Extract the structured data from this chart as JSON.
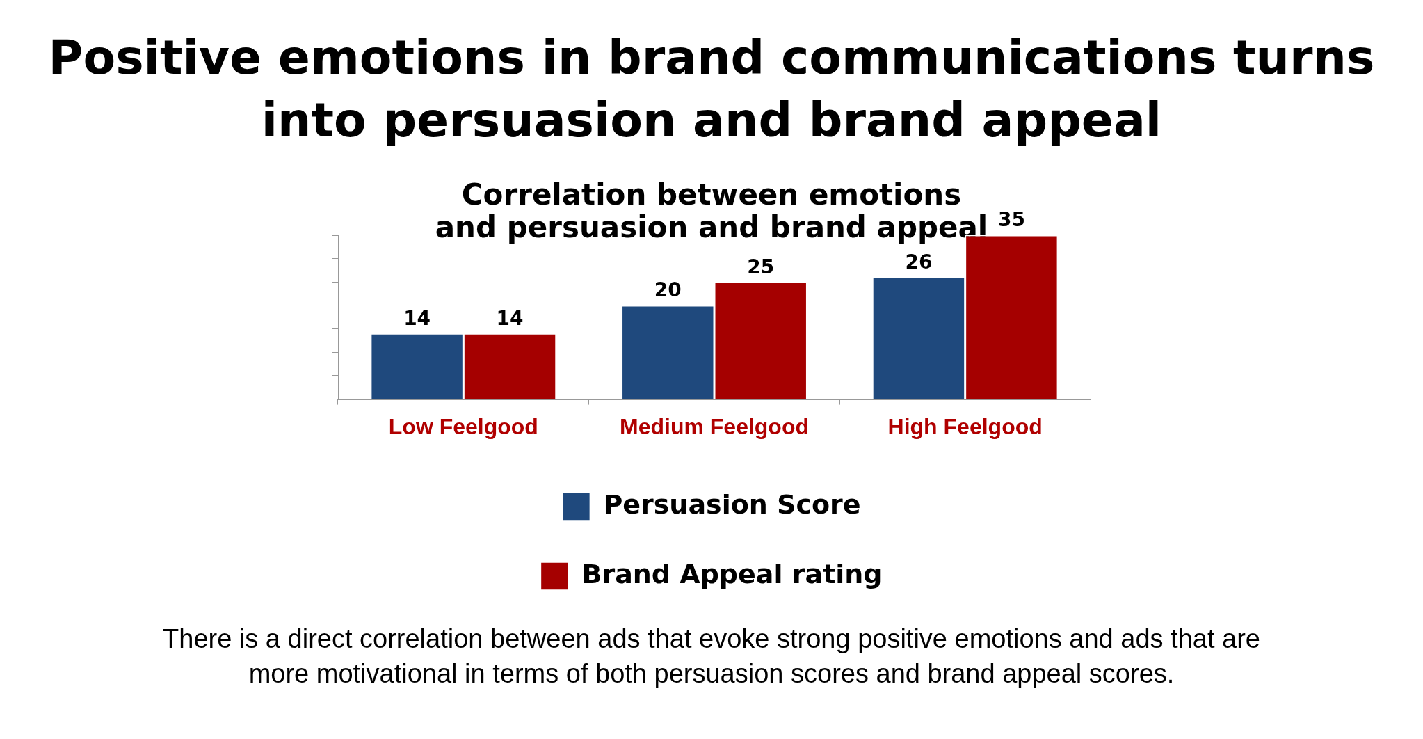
{
  "chart_data": {
    "type": "bar",
    "title": "Positive emotions in brand communications turns into persuasion and brand appeal",
    "subtitle": "Correlation between emotions and persuasion and brand appeal",
    "categories": [
      "Low Feelgood",
      "Medium Feelgood",
      "High Feelgood"
    ],
    "series": [
      {
        "name": "Persuasion Score",
        "color": "#1f497d",
        "values": [
          14,
          20,
          26
        ]
      },
      {
        "name": "Brand Appeal rating",
        "color": "#a50000",
        "values": [
          14,
          25,
          35
        ]
      }
    ],
    "tick_labels": "x",
    "data_labels": true,
    "grid": false,
    "legend": "bottom",
    "annotations": [
      "There is a direct correlation between ads that evoke strong positive emotions and ads that are more motivational in terms of both persuasion scores and brand appeal scores."
    ]
  }
}
